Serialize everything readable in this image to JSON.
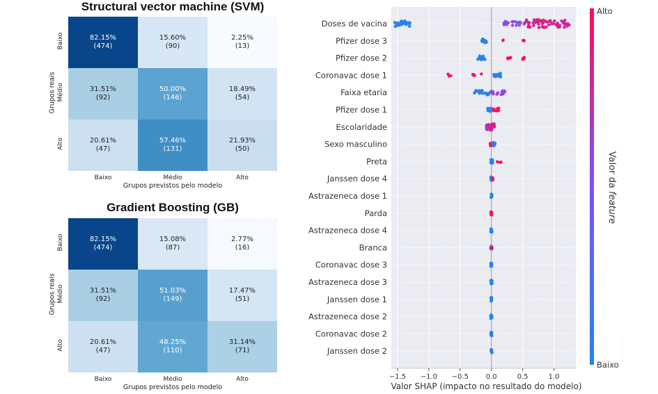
{
  "chart_data": [
    {
      "type": "heatmap",
      "title": "Structural vector machine (SVM)",
      "xlabel": "Grupos previstos pelo modelo",
      "ylabel": "Grupos reais",
      "x_categories": [
        "Baixo",
        "Médio",
        "Alto"
      ],
      "y_categories": [
        "Baixo",
        "Médio",
        "Alto"
      ],
      "percentages": [
        [
          "82.15%",
          "15.60%",
          "2.25%"
        ],
        [
          "31.51%",
          "50.00%",
          "18.49%"
        ],
        [
          "20.61%",
          "57.46%",
          "21.93%"
        ]
      ],
      "counts": [
        [
          "(474)",
          "(90)",
          "(13)"
        ],
        [
          "(92)",
          "(146)",
          "(54)"
        ],
        [
          "(47)",
          "(131)",
          "(50)"
        ]
      ],
      "values": [
        [
          82.15,
          15.6,
          2.25
        ],
        [
          31.51,
          50.0,
          18.49
        ],
        [
          20.61,
          57.46,
          21.93
        ]
      ],
      "colormap": "Blues"
    },
    {
      "type": "heatmap",
      "title": "Gradient Boosting (GB)",
      "xlabel": "Grupos previstos pelo modelo",
      "ylabel": "Grupos reais",
      "x_categories": [
        "Baixo",
        "Médio",
        "Alto"
      ],
      "y_categories": [
        "Baixo",
        "Médio",
        "Alto"
      ],
      "percentages": [
        [
          "82.15%",
          "15.08%",
          "2.77%"
        ],
        [
          "31.51%",
          "51.03%",
          "17.47%"
        ],
        [
          "20.61%",
          "48.25%",
          "31.14%"
        ]
      ],
      "counts": [
        [
          "(474)",
          "(87)",
          "(16)"
        ],
        [
          "(92)",
          "(149)",
          "(51)"
        ],
        [
          "(47)",
          "(110)",
          "(71)"
        ]
      ],
      "values": [
        [
          82.15,
          15.08,
          2.77
        ],
        [
          31.51,
          51.03,
          17.47
        ],
        [
          20.61,
          48.25,
          31.14
        ]
      ],
      "colormap": "Blues"
    },
    {
      "type": "scatter",
      "subtype": "shap-beeswarm",
      "xlabel": "Valor SHAP (impacto no resultado do modelo)",
      "xlim": [
        -1.6,
        1.35
      ],
      "xticks": [
        -1.5,
        -1.0,
        -0.5,
        0.0,
        0.5,
        1.0
      ],
      "xtick_labels": [
        "−1.5",
        "−1.0",
        "−0.5",
        "0.0",
        "0.5",
        "1.0"
      ],
      "grid": true,
      "colorbar": {
        "label_prefix": "Valor da ",
        "label_italic": "feature",
        "high": "Alto",
        "low": "Baixo",
        "color_low": "#1e88e5",
        "color_high": "#ff0d57"
      },
      "features": [
        {
          "name": "Doses de vacina",
          "clusters": [
            {
              "x": [
                -1.55,
                -1.3
              ],
              "c": 0.05,
              "n": 30
            },
            {
              "x": [
                0.2,
                0.5
              ],
              "c": 0.55,
              "n": 18
            },
            {
              "x": [
                0.5,
                1.25
              ],
              "c": 0.85,
              "n": 60
            }
          ]
        },
        {
          "name": "Pfizer dose 3",
          "clusters": [
            {
              "x": [
                -0.15,
                -0.08
              ],
              "c": 0.05,
              "n": 14
            },
            {
              "x": [
                0.18,
                0.24
              ],
              "c": 1.0,
              "n": 2
            },
            {
              "x": [
                0.5,
                0.55
              ],
              "c": 1.0,
              "n": 3
            }
          ]
        },
        {
          "name": "Pfizer dose 2",
          "clusters": [
            {
              "x": [
                -0.22,
                -0.1
              ],
              "c": 0.05,
              "n": 16
            },
            {
              "x": [
                0.25,
                0.35
              ],
              "c": 1.0,
              "n": 4
            },
            {
              "x": [
                0.5,
                0.6
              ],
              "c": 1.0,
              "n": 4
            }
          ]
        },
        {
          "name": "Coronavac dose 1",
          "clusters": [
            {
              "x": [
                -0.7,
                -0.64
              ],
              "c": 1.0,
              "n": 3
            },
            {
              "x": [
                -0.3,
                -0.16
              ],
              "c": 1.0,
              "n": 5
            },
            {
              "x": [
                0.02,
                0.15
              ],
              "c": 0.05,
              "n": 14
            }
          ]
        },
        {
          "name": "Faixa etaria",
          "clusters": [
            {
              "x": [
                -0.3,
                0.0
              ],
              "c": 0.1,
              "n": 18
            },
            {
              "x": [
                0.0,
                0.22
              ],
              "c": 0.6,
              "n": 16
            }
          ]
        },
        {
          "name": "Pfizer dose 1",
          "clusters": [
            {
              "x": [
                -0.06,
                0.0
              ],
              "c": 0.05,
              "n": 14
            },
            {
              "x": [
                0.02,
                0.15
              ],
              "c": 1.0,
              "n": 10
            }
          ]
        },
        {
          "name": "Escolaridade",
          "clusters": [
            {
              "x": [
                -0.08,
                0.05
              ],
              "c": 0.8,
              "n": 34
            }
          ]
        },
        {
          "name": "Sexo masculino",
          "clusters": [
            {
              "x": [
                -0.02,
                0.03
              ],
              "c": 1.0,
              "n": 10
            },
            {
              "x": [
                0.02,
                0.06
              ],
              "c": 0.05,
              "n": 8
            }
          ]
        },
        {
          "name": "Preta",
          "clusters": [
            {
              "x": [
                -0.01,
                0.02
              ],
              "c": 0.05,
              "n": 12
            },
            {
              "x": [
                0.08,
                0.18
              ],
              "c": 1.0,
              "n": 3
            }
          ]
        },
        {
          "name": "Janssen dose 4",
          "clusters": [
            {
              "x": [
                -0.01,
                0.02
              ],
              "c": 0.05,
              "n": 12
            },
            {
              "x": [
                0.02,
                0.04
              ],
              "c": 1.0,
              "n": 2
            }
          ]
        },
        {
          "name": "Astrazeneca dose 1",
          "clusters": [
            {
              "x": [
                -0.01,
                0.01
              ],
              "c": 0.05,
              "n": 12
            }
          ]
        },
        {
          "name": "Parda",
          "clusters": [
            {
              "x": [
                -0.01,
                0.01
              ],
              "c": 1.0,
              "n": 12
            }
          ]
        },
        {
          "name": "Astrazeneca dose 4",
          "clusters": [
            {
              "x": [
                -0.01,
                0.01
              ],
              "c": 0.05,
              "n": 12
            }
          ]
        },
        {
          "name": "Branca",
          "clusters": [
            {
              "x": [
                -0.01,
                0.01
              ],
              "c": 0.05,
              "n": 10
            },
            {
              "x": [
                -0.01,
                0.01
              ],
              "c": 1.0,
              "n": 4
            }
          ]
        },
        {
          "name": "Coronavac dose 3",
          "clusters": [
            {
              "x": [
                -0.01,
                0.01
              ],
              "c": 0.05,
              "n": 12
            }
          ]
        },
        {
          "name": "Astrazeneca dose 3",
          "clusters": [
            {
              "x": [
                -0.01,
                0.01
              ],
              "c": 0.05,
              "n": 12
            }
          ]
        },
        {
          "name": "Janssen dose 1",
          "clusters": [
            {
              "x": [
                -0.01,
                0.01
              ],
              "c": 0.05,
              "n": 12
            }
          ]
        },
        {
          "name": "Astrazeneca dose 2",
          "clusters": [
            {
              "x": [
                -0.01,
                0.01
              ],
              "c": 0.05,
              "n": 12
            }
          ]
        },
        {
          "name": "Coronavac dose 2",
          "clusters": [
            {
              "x": [
                -0.01,
                0.01
              ],
              "c": 0.05,
              "n": 12
            }
          ]
        },
        {
          "name": "Janssen dose 2",
          "clusters": [
            {
              "x": [
                -0.01,
                0.01
              ],
              "c": 0.05,
              "n": 12
            }
          ]
        }
      ]
    }
  ]
}
